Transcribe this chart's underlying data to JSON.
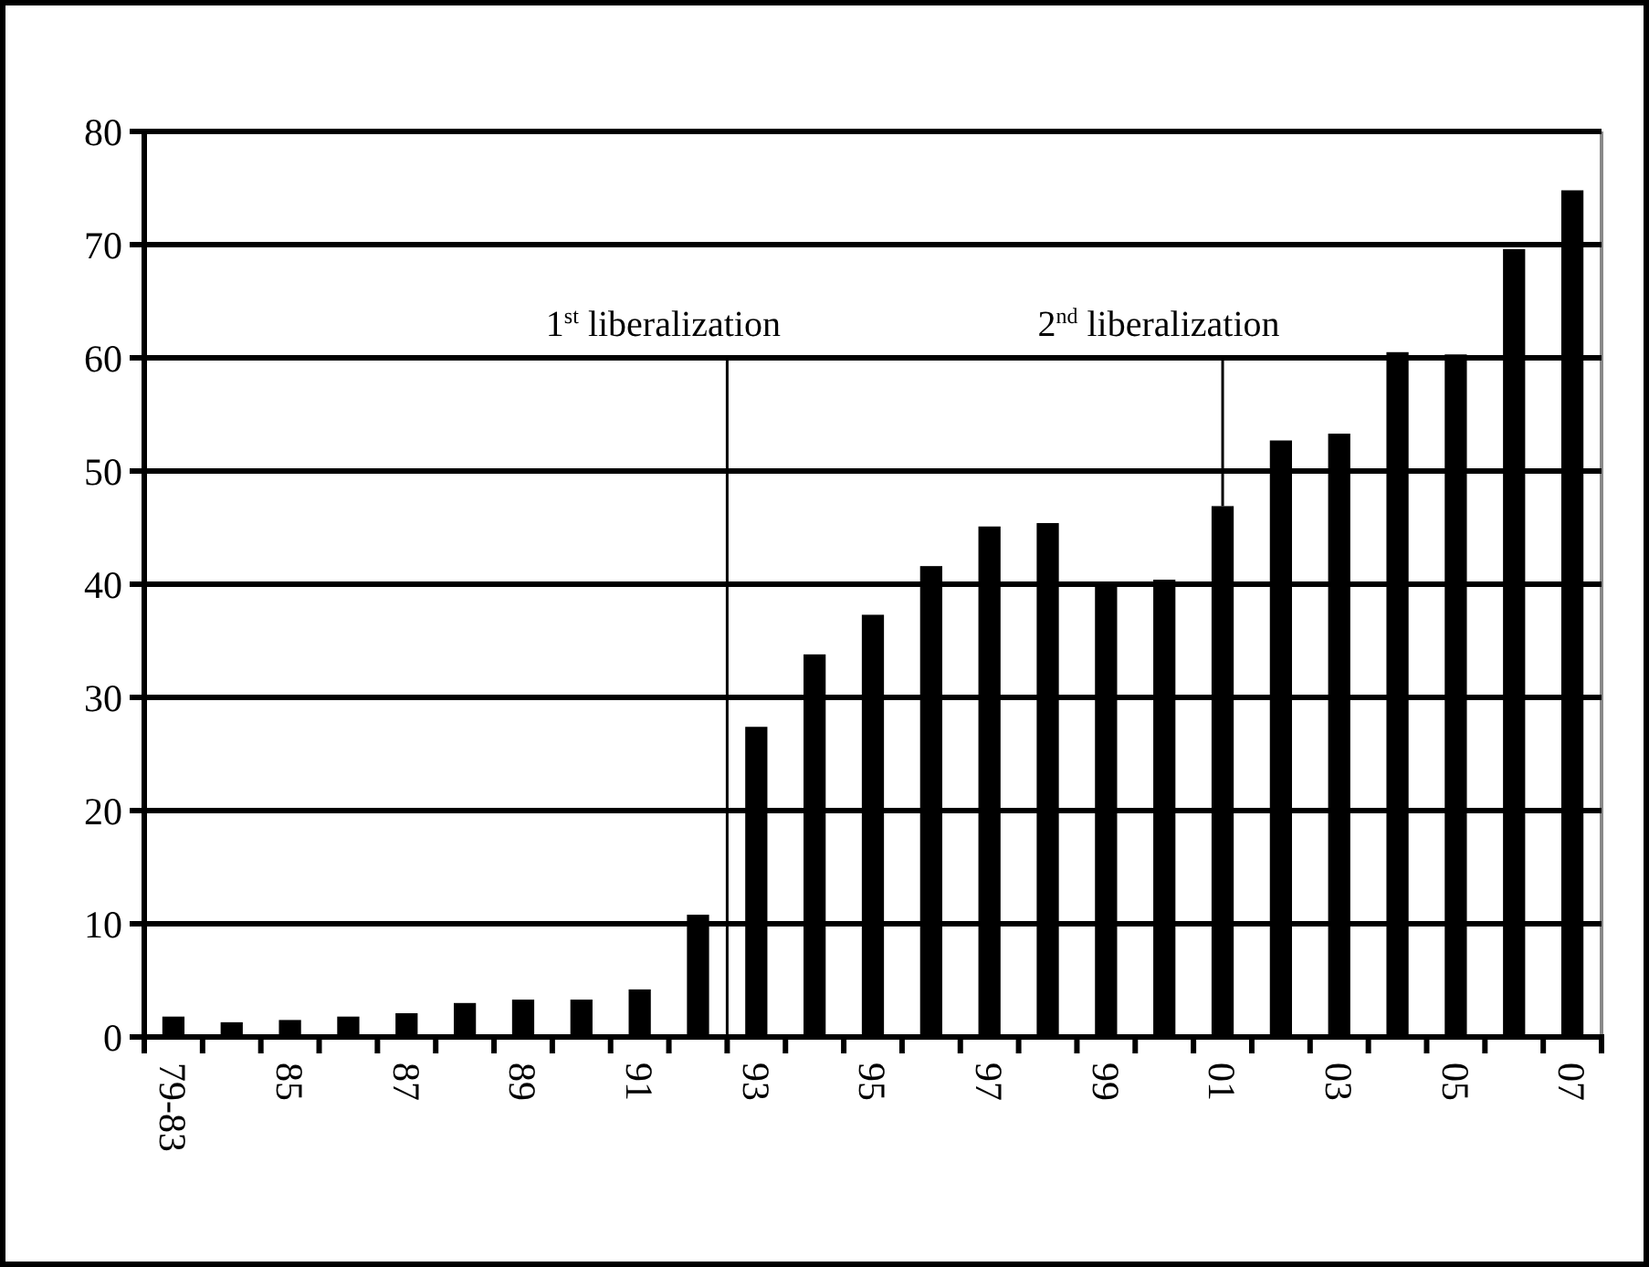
{
  "chart_data": {
    "type": "bar",
    "categories": [
      "79-83",
      null,
      "85",
      null,
      "87",
      null,
      "89",
      null,
      "91",
      null,
      "93",
      null,
      "95",
      null,
      "97",
      null,
      "99",
      null,
      "01",
      null,
      "03",
      null,
      "05",
      null,
      "07"
    ],
    "values": [
      1.8,
      1.3,
      1.5,
      1.8,
      2.1,
      3.0,
      3.3,
      3.3,
      4.2,
      10.8,
      27.4,
      33.8,
      37.3,
      41.6,
      45.1,
      45.4,
      40.2,
      40.4,
      46.9,
      52.7,
      53.3,
      60.5,
      60.3,
      69.6,
      74.8
    ],
    "color": "#000000",
    "ylim": [
      0,
      80
    ],
    "yticks": [
      0,
      10,
      20,
      30,
      40,
      50,
      60,
      70,
      80
    ],
    "grid": "y",
    "annotations": [
      "1$^{st}$ liberalization",
      {
        "text": "2$^{nd}$ liberalization",
        "x": "01",
        "y": 46.9
      }
    ]
  }
}
